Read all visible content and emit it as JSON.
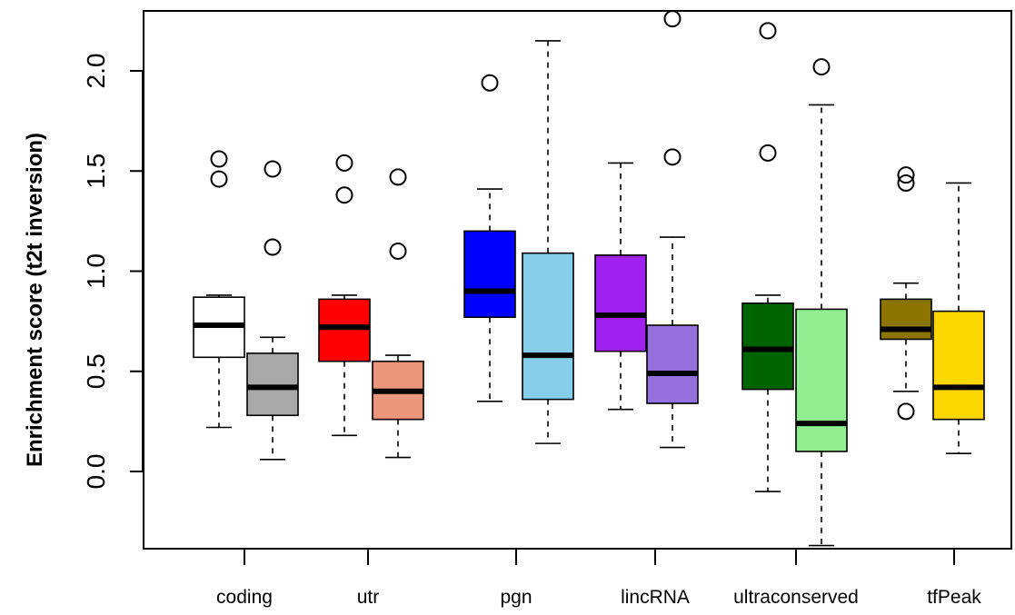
{
  "chart_data": {
    "type": "box",
    "ylabel": "Enrichment score (t2t inversion)",
    "xlabel": "",
    "title": "",
    "ylim": [
      -0.4,
      2.3
    ],
    "yticks": [
      0.0,
      0.5,
      1.0,
      1.5,
      2.0
    ],
    "ytick_labels": [
      "0.0",
      "0.5",
      "1.0",
      "1.5",
      "2.0"
    ],
    "categories": [
      "coding",
      "utr",
      "pgn",
      "lincRNA",
      "ultraconserved",
      "tfPeak"
    ],
    "boxes": [
      {
        "group": 0,
        "color": "#ffffff",
        "low": 0.22,
        "q1": 0.57,
        "median": 0.73,
        "q3": 0.87,
        "high": 0.88,
        "outliers": [
          1.46,
          1.56
        ]
      },
      {
        "group": 0,
        "color": "#a9a9a9",
        "low": 0.06,
        "q1": 0.28,
        "median": 0.42,
        "q3": 0.59,
        "high": 0.67,
        "outliers": [
          1.12,
          1.51
        ]
      },
      {
        "group": 1,
        "color": "#ff0000",
        "low": 0.18,
        "q1": 0.55,
        "median": 0.72,
        "q3": 0.86,
        "high": 0.88,
        "outliers": [
          1.38,
          1.54
        ]
      },
      {
        "group": 1,
        "color": "#e9967a",
        "low": 0.07,
        "q1": 0.26,
        "median": 0.4,
        "q3": 0.55,
        "high": 0.58,
        "outliers": [
          1.1,
          1.47
        ]
      },
      {
        "group": 2,
        "color": "#0000ff",
        "low": 0.35,
        "q1": 0.77,
        "median": 0.9,
        "q3": 1.2,
        "high": 1.41,
        "outliers": [
          1.94
        ]
      },
      {
        "group": 2,
        "color": "#87ceeb",
        "low": 0.14,
        "q1": 0.36,
        "median": 0.58,
        "q3": 1.09,
        "high": 2.15,
        "outliers": []
      },
      {
        "group": 3,
        "color": "#a020f0",
        "low": 0.31,
        "q1": 0.6,
        "median": 0.78,
        "q3": 1.08,
        "high": 1.54,
        "outliers": []
      },
      {
        "group": 3,
        "color": "#9370db",
        "low": 0.12,
        "q1": 0.34,
        "median": 0.49,
        "q3": 0.73,
        "high": 1.17,
        "outliers": [
          1.57,
          2.26
        ]
      },
      {
        "group": 4,
        "color": "#006400",
        "low": -0.1,
        "q1": 0.41,
        "median": 0.61,
        "q3": 0.84,
        "high": 0.88,
        "outliers": [
          1.59,
          2.2
        ]
      },
      {
        "group": 4,
        "color": "#90ee90",
        "low": -0.37,
        "q1": 0.1,
        "median": 0.24,
        "q3": 0.81,
        "high": 1.83,
        "outliers": [
          2.02
        ]
      },
      {
        "group": 5,
        "color": "#8b7500",
        "low": 0.4,
        "q1": 0.66,
        "median": 0.71,
        "q3": 0.86,
        "high": 0.94,
        "outliers": [
          0.3,
          1.44,
          1.48
        ]
      },
      {
        "group": 5,
        "color": "#ffd700",
        "low": 0.09,
        "q1": 0.26,
        "median": 0.42,
        "q3": 0.8,
        "high": 1.44,
        "outliers": []
      }
    ],
    "grid": false,
    "legend": "none"
  }
}
